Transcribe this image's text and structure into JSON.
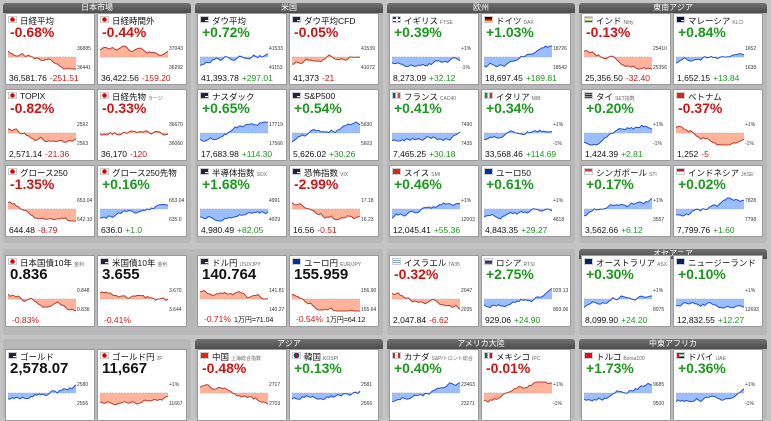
{
  "groups": [
    {
      "label": "日本市場"
    },
    {
      "label": "米国"
    },
    {
      "label": "欧州"
    },
    {
      "label": "東南アジア"
    },
    {
      "label": "オセアニア"
    },
    {
      "label": "アジア"
    },
    {
      "label": "アメリカ大陸"
    },
    {
      "label": "中東アフリカ"
    }
  ],
  "tiles": [
    {
      "name": "日経平均",
      "sub": "",
      "pct": "-0.68%",
      "price": "36,581.76",
      "change": "-251.51",
      "dir": "dn",
      "flag": "jp",
      "trend": "down",
      "axis": [
        "36885",
        "36441"
      ]
    },
    {
      "name": "日経時間外",
      "sub": "",
      "pct": "-0.44%",
      "price": "36,422.56",
      "change": "-159.20",
      "dir": "dn",
      "flag": "jp",
      "trend": "down",
      "axis": [
        "37043",
        "36292"
      ]
    },
    {
      "name": "ダウ平均",
      "sub": "",
      "pct": "+0.72%",
      "price": "41,393.78",
      "change": "+297.01",
      "dir": "up",
      "flag": "us",
      "trend": "up",
      "axis": [
        "41533",
        "41153"
      ]
    },
    {
      "name": "ダウ平均CFD",
      "sub": "",
      "pct": "-0.05%",
      "price": "41,373",
      "change": "-21",
      "dir": "dn",
      "flag": "us",
      "trend": "up",
      "axis": [
        "41539",
        "41072"
      ]
    },
    {
      "name": "イギリス",
      "sub": "FTSE",
      "pct": "+0.39%",
      "price": "8,273.09",
      "change": "+32.12",
      "dir": "up",
      "flag": "gb",
      "trend": "up",
      "axis": [
        "+1%",
        "-1%"
      ]
    },
    {
      "name": "ドイツ",
      "sub": "DAX",
      "pct": "+1.03%",
      "price": "18,697.45",
      "change": "+189.81",
      "dir": "up",
      "flag": "de",
      "trend": "up",
      "axis": [
        "18726",
        "18542"
      ]
    },
    {
      "name": "インド",
      "sub": "Nifty",
      "pct": "-0.13%",
      "price": "25,356.50",
      "change": "-32.40",
      "dir": "dn",
      "flag": "in",
      "trend": "down",
      "axis": [
        "25410",
        "25356"
      ]
    },
    {
      "name": "マレーシア",
      "sub": "KLCI",
      "pct": "+0.84%",
      "price": "1,652.15",
      "change": "+13.84",
      "dir": "up",
      "flag": "my",
      "trend": "up",
      "axis": [
        "1652",
        "1638"
      ]
    },
    {
      "name": "TOPIX",
      "sub": "",
      "pct": "-0.82%",
      "price": "2,571.14",
      "change": "-21.36",
      "dir": "dn",
      "flag": "jp",
      "trend": "down",
      "axis": [
        "2592",
        "2563"
      ]
    },
    {
      "name": "日経先物",
      "sub": "ラージ",
      "pct": "-0.33%",
      "price": "36,170",
      "change": "-120",
      "dir": "dn",
      "flag": "jp",
      "trend": "flat",
      "axis": [
        "36670",
        "36060"
      ]
    },
    {
      "name": "ナスダック",
      "sub": "",
      "pct": "+0.65%",
      "price": "17,683.98",
      "change": "+114.30",
      "dir": "up",
      "flag": "us",
      "trend": "up",
      "axis": [
        "17719",
        "17566"
      ]
    },
    {
      "name": "S&P500",
      "sub": "",
      "pct": "+0.54%",
      "price": "5,626.02",
      "change": "+30.26",
      "dir": "up",
      "flag": "us",
      "trend": "up",
      "axis": [
        "5630",
        "5603"
      ]
    },
    {
      "name": "フランス",
      "sub": "CAC40",
      "pct": "+0.41%",
      "price": "7,465.25",
      "change": "+30.18",
      "dir": "up",
      "flag": "fr",
      "trend": "up",
      "axis": [
        "7490",
        "7435"
      ]
    },
    {
      "name": "イタリア",
      "sub": "MIB",
      "pct": "+0.34%",
      "price": "33,568.46",
      "change": "+114.69",
      "dir": "up",
      "flag": "it",
      "trend": "up",
      "axis": [
        "+1%",
        "-1%"
      ]
    },
    {
      "name": "タイ",
      "sub": "SET指数",
      "pct": "+0.20%",
      "price": "1,424.39",
      "change": "+2.81",
      "dir": "up",
      "flag": "th",
      "trend": "up",
      "axis": [
        "+1%",
        "-1%"
      ]
    },
    {
      "name": "ベトナム",
      "sub": "",
      "pct": "-0.37%",
      "price": "1,252",
      "change": "-5",
      "dir": "dn",
      "flag": "vn",
      "trend": "down",
      "axis": [
        "+1%",
        "-1%"
      ]
    },
    {
      "name": "グロース250",
      "sub": "",
      "pct": "-1.35%",
      "price": "644.48",
      "change": "-8.79",
      "dir": "dn",
      "flag": "jp",
      "trend": "down",
      "axis": [
        "653.04",
        "642.10"
      ]
    },
    {
      "name": "グロース250先物",
      "sub": "",
      "pct": "+0.16%",
      "price": "636.0",
      "change": "+1.0",
      "dir": "up",
      "flag": "jp",
      "trend": "up",
      "axis": [
        "653.04",
        "635.0"
      ]
    },
    {
      "name": "半導体指数",
      "sub": "SOX",
      "pct": "+1.68%",
      "price": "4,980.49",
      "change": "+82.05",
      "dir": "up",
      "flag": "us",
      "trend": "up",
      "axis": [
        "4991",
        "4929"
      ]
    },
    {
      "name": "恐怖指数",
      "sub": "VIX",
      "pct": "-2.99%",
      "price": "16.56",
      "change": "-0.51",
      "dir": "dn",
      "flag": "us",
      "trend": "down",
      "axis": [
        "17.18",
        "16.23"
      ]
    },
    {
      "name": "スイス",
      "sub": "SMI",
      "pct": "+0.46%",
      "price": "12,045.41",
      "change": "+55.36",
      "dir": "up",
      "flag": "ch",
      "trend": "up",
      "axis": [
        "+1%",
        "12003"
      ]
    },
    {
      "name": "ユーロ50",
      "sub": "",
      "pct": "+0.61%",
      "price": "4,843.35",
      "change": "+29.27",
      "dir": "up",
      "flag": "eu",
      "trend": "up",
      "axis": [
        "+1%",
        "4818"
      ]
    },
    {
      "name": "シンガポール",
      "sub": "STI",
      "pct": "+0.17%",
      "price": "3,562.66",
      "change": "+6.12",
      "dir": "up",
      "flag": "sg",
      "trend": "up",
      "axis": [
        "+1%",
        "3557"
      ]
    },
    {
      "name": "インドネシア",
      "sub": "JKSE",
      "pct": "+0.02%",
      "price": "7,799.76",
      "change": "+1.60",
      "dir": "up",
      "flag": "id",
      "trend": "up",
      "axis": [
        "7828",
        "7798"
      ]
    },
    {
      "name": "日本国債10年",
      "sub": "金利",
      "pct": "0.836",
      "price": "",
      "change": "-0.83%",
      "dir": "dn",
      "flag": "jp",
      "trend": "down",
      "axis": [
        "0.848",
        "0.836"
      ],
      "big": true
    },
    {
      "name": "米国債10年",
      "sub": "金利",
      "pct": "3.655",
      "price": "",
      "change": "-0.41%",
      "dir": "dn",
      "flag": "us",
      "trend": "down",
      "axis": [
        "3.670",
        "3.644"
      ],
      "big": true
    },
    {
      "name": "ドル円",
      "sub": "USD/JPY",
      "pct": "140.764",
      "price": "",
      "change": "-0.71%",
      "change2": "1万円=71.04",
      "dir": "dn",
      "flag": "us",
      "trend": "down",
      "axis": [
        "141.81",
        "140.27"
      ],
      "big": true
    },
    {
      "name": "ユーロ円",
      "sub": "EUR/JPY",
      "pct": "155.959",
      "price": "",
      "change": "-0.54%",
      "change2": "1万円=64.12",
      "dir": "dn",
      "flag": "eu",
      "trend": "down",
      "axis": [
        "156.90",
        "155.64"
      ],
      "big": true
    },
    {
      "name": "イスラエル",
      "sub": "TA35",
      "pct": "-0.32%",
      "price": "2,047.84",
      "change": "-6.62",
      "dir": "dn",
      "flag": "il",
      "trend": "down",
      "axis": [
        "2047",
        "2035"
      ]
    },
    {
      "name": "ロシア",
      "sub": "RTSI",
      "pct": "+2.75%",
      "price": "929.06",
      "change": "+24.90",
      "dir": "up",
      "flag": "ru",
      "trend": "up",
      "axis": [
        "929.13",
        "893.06"
      ]
    },
    {
      "name": "オーストラリア",
      "sub": "ASX",
      "pct": "+0.30%",
      "price": "8,099.90",
      "change": "+24.20",
      "dir": "up",
      "flag": "au",
      "trend": "up",
      "axis": [
        "+1%",
        "8075"
      ]
    },
    {
      "name": "ニュージーランド",
      "sub": "",
      "pct": "+0.10%",
      "price": "12,832.55",
      "change": "+12.27",
      "dir": "up",
      "flag": "nz",
      "trend": "up",
      "axis": [
        "+1%",
        "12693"
      ]
    },
    {
      "name": "ゴールド",
      "sub": "",
      "pct": "2,578.07",
      "price": "",
      "change": "",
      "dir": "up",
      "flag": "us",
      "trend": "up",
      "axis": [
        "2580",
        "2556"
      ],
      "big": true
    },
    {
      "name": "ゴールド円",
      "sub": "2P",
      "pct": "11,667",
      "price": "",
      "change": "",
      "dir": "dn",
      "flag": "jp",
      "trend": "up",
      "axis": [
        "+1%",
        "11667"
      ],
      "big": true
    },
    {
      "name": "中国",
      "sub": "上海総合指数",
      "pct": "-0.48%",
      "price": "",
      "change": "",
      "dir": "dn",
      "flag": "cn",
      "trend": "down",
      "axis": [
        "2717",
        "2703"
      ]
    },
    {
      "name": "韓国",
      "sub": "KOSPI",
      "pct": "+0.13%",
      "price": "",
      "change": "",
      "dir": "up",
      "flag": "kr",
      "trend": "up",
      "axis": [
        "2581",
        "2566"
      ]
    },
    {
      "name": "カナダ",
      "sub": "S&P/トロント総合",
      "pct": "+0.40%",
      "price": "",
      "change": "",
      "dir": "up",
      "flag": "ca",
      "trend": "up",
      "axis": [
        "23463",
        "23271"
      ]
    },
    {
      "name": "メキシコ",
      "sub": "IPC",
      "pct": "-0.01%",
      "price": "",
      "change": "",
      "dir": "dn",
      "flag": "mx",
      "trend": "up",
      "axis": [
        "+1%",
        "-1%"
      ]
    },
    {
      "name": "トルコ",
      "sub": "Borsa100",
      "pct": "+1.73%",
      "price": "",
      "change": "",
      "dir": "up",
      "flag": "tr",
      "trend": "up",
      "axis": [
        "9685",
        "9500"
      ]
    },
    {
      "name": "ドバイ",
      "sub": "UAE",
      "pct": "+0.36%",
      "price": "",
      "change": "",
      "dir": "up",
      "flag": "ae",
      "trend": "up",
      "axis": [
        "+1%",
        "-1%"
      ]
    }
  ]
}
